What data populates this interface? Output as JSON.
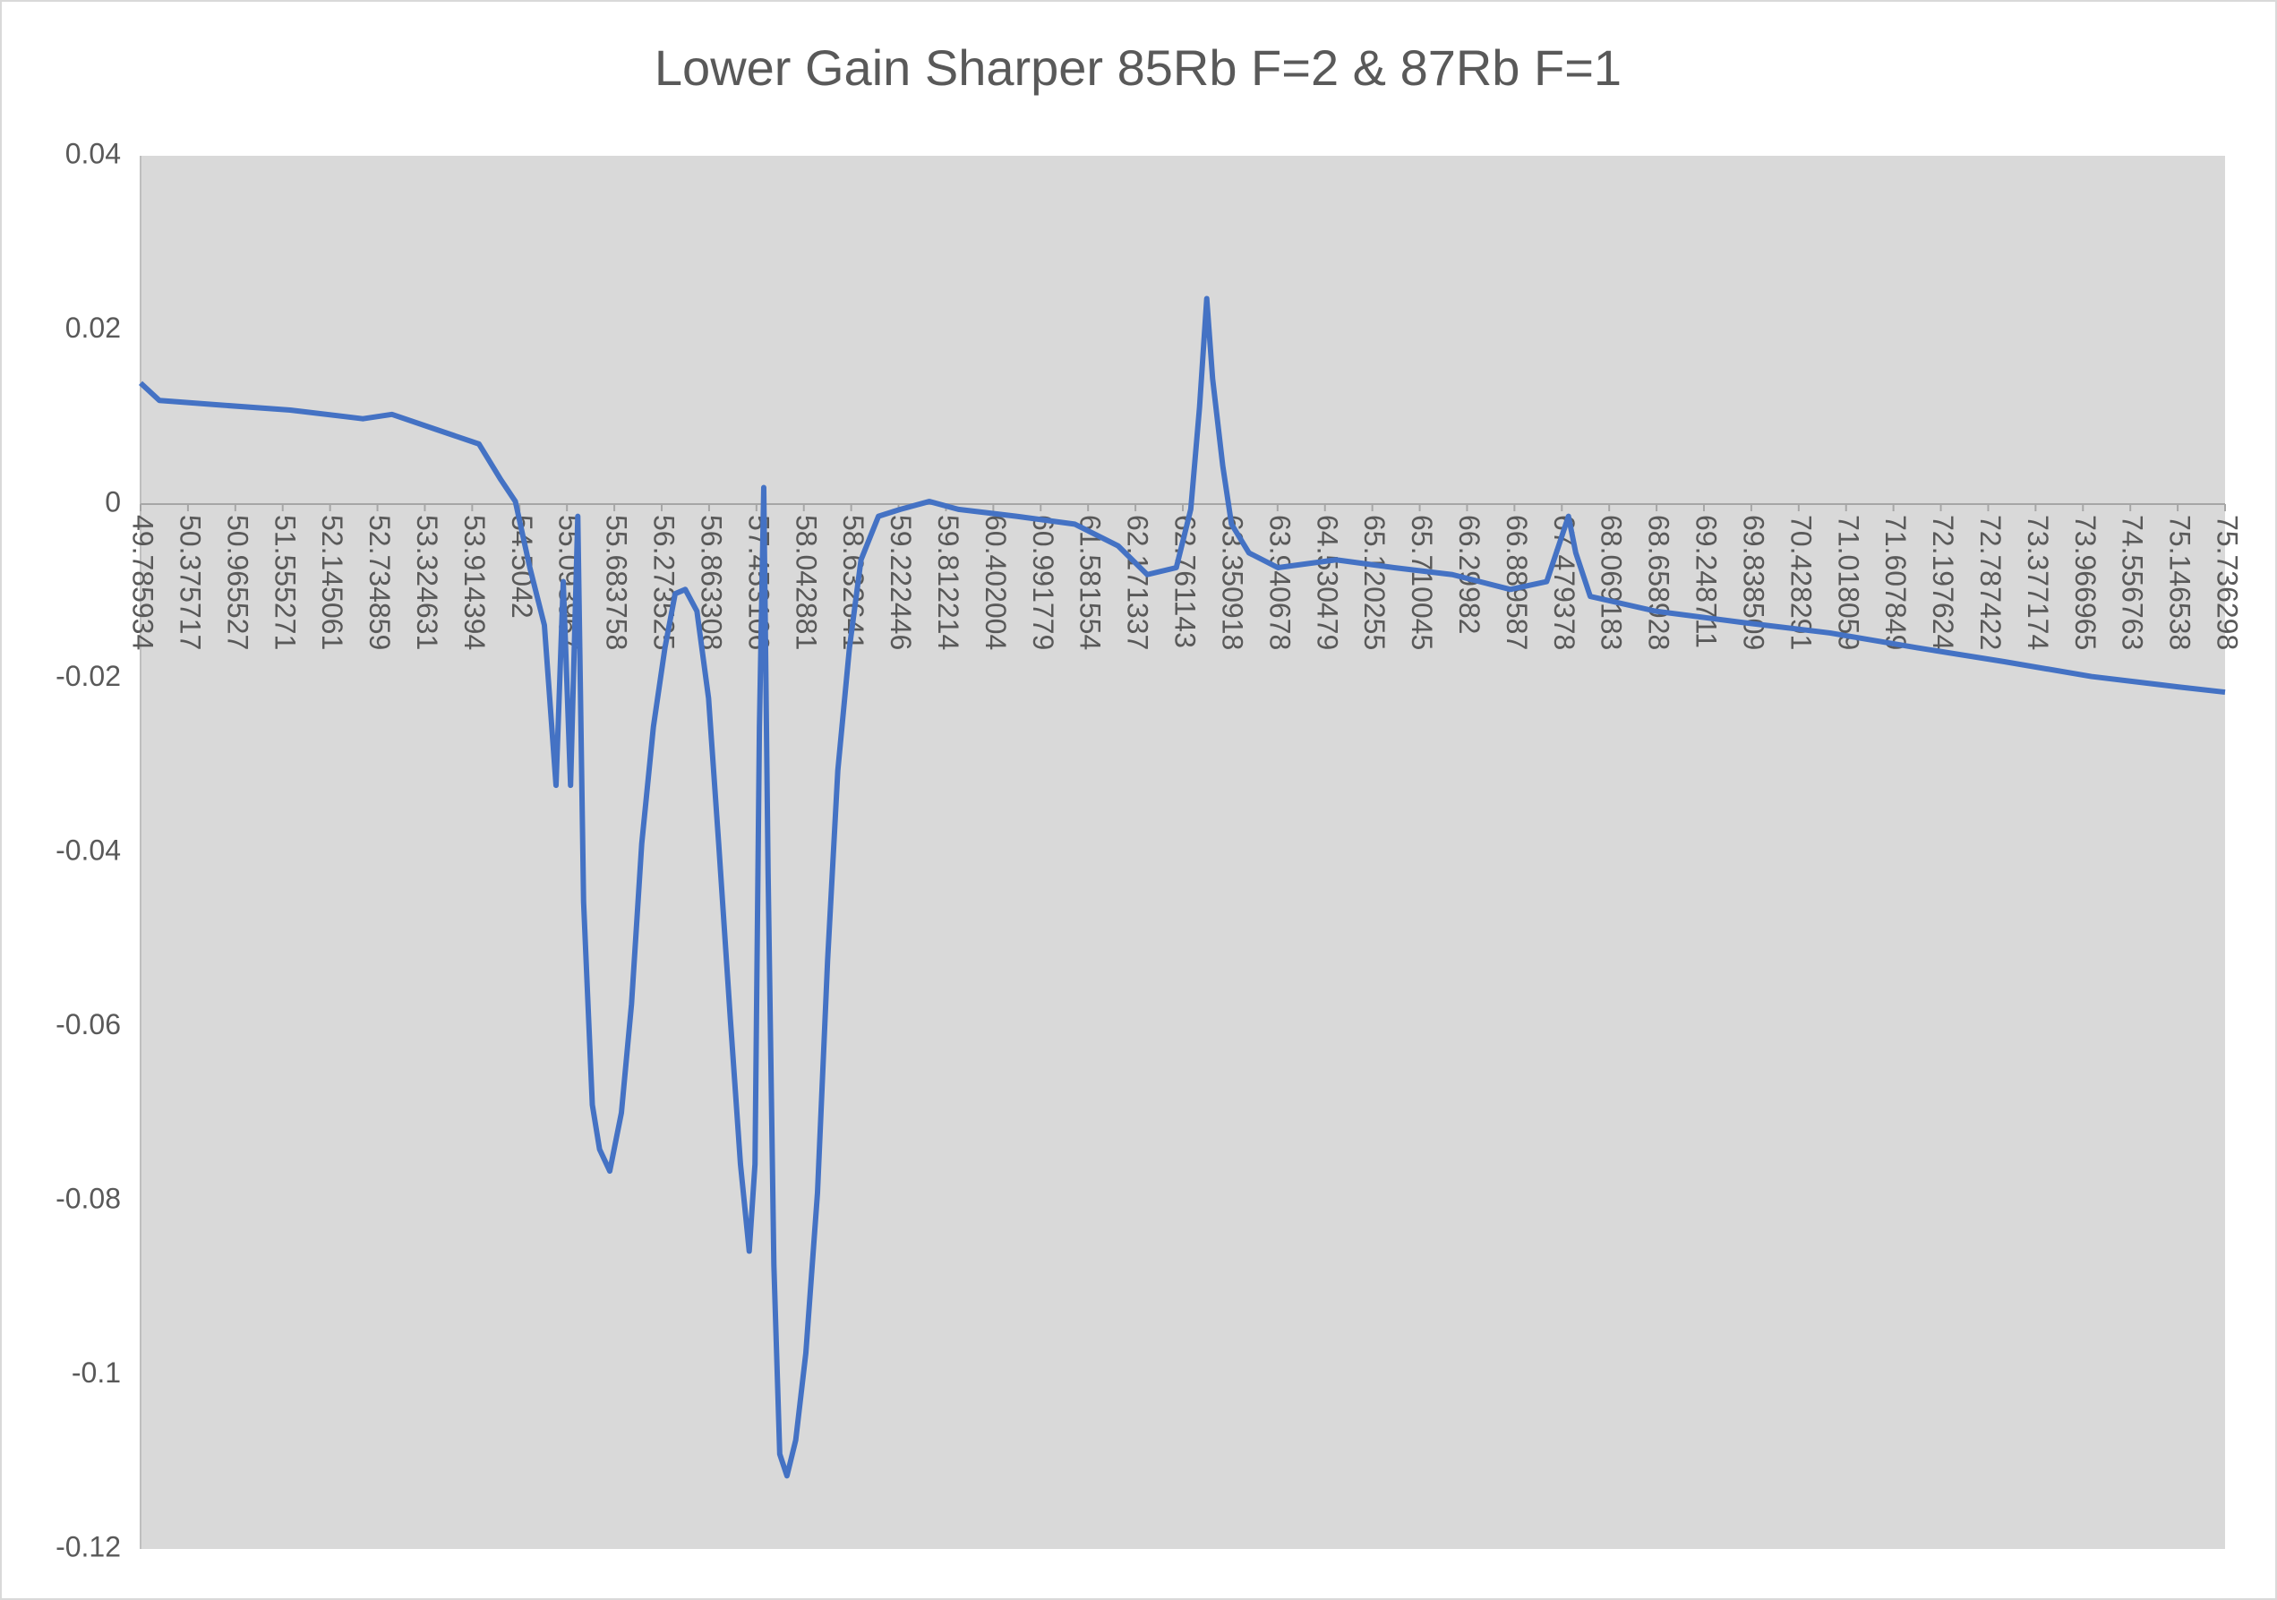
{
  "chart_data": {
    "type": "line",
    "title": "Lower Gain Sharper 85Rb F=2 & 87Rb F=1",
    "x": [
      49.786,
      50.021,
      50.744,
      51.649,
      52.553,
      52.915,
      53.457,
      53.999,
      54.271,
      54.452,
      54.632,
      54.813,
      54.958,
      55.048,
      55.139,
      55.229,
      55.301,
      55.41,
      55.5,
      55.627,
      55.772,
      55.898,
      56.025,
      56.17,
      56.314,
      56.441,
      56.567,
      56.712,
      56.857,
      56.983,
      57.128,
      57.254,
      57.363,
      57.435,
      57.49,
      57.544,
      57.598,
      57.67,
      57.743,
      57.833,
      57.942,
      58.068,
      58.213,
      58.339,
      58.466,
      58.611,
      58.755,
      58.972,
      59.244,
      59.605,
      59.967,
      60.69,
      61.414,
      61.956,
      62.318,
      62.68,
      62.86,
      62.969,
      63.059,
      63.132,
      63.258,
      63.367,
      63.584,
      63.946,
      64.669,
      65.392,
      66.116,
      66.839,
      67.291,
      67.472,
      67.562,
      67.653,
      67.833,
      68.647,
      69.732,
      70.817,
      71.902,
      72.988,
      74.073,
      75.158,
      75.736
    ],
    "series": [
      {
        "color": "#4472c4",
        "values": [
          0.0139,
          0.0119,
          0.0114,
          0.0108,
          0.0098,
          0.0103,
          0.0086,
          0.0069,
          0.0028,
          0.0003,
          -0.0073,
          -0.0139,
          -0.0323,
          -0.0089,
          -0.0323,
          -0.0014,
          -0.0457,
          -0.069,
          -0.0741,
          -0.0766,
          -0.0699,
          -0.0574,
          -0.039,
          -0.0256,
          -0.0165,
          -0.0103,
          -0.0098,
          -0.0123,
          -0.0223,
          -0.039,
          -0.0591,
          -0.0758,
          -0.0858,
          -0.0758,
          -0.0256,
          0.0019,
          -0.0423,
          -0.0874,
          -0.1091,
          -0.1116,
          -0.1075,
          -0.0975,
          -0.0791,
          -0.0524,
          -0.0306,
          -0.0165,
          -0.0064,
          -0.0014,
          -0.0006,
          0.0003,
          -0.0006,
          -0.0014,
          -0.0023,
          -0.0048,
          -0.0081,
          -0.0073,
          -0.0006,
          0.0111,
          0.0236,
          0.0144,
          0.0044,
          -0.0023,
          -0.0056,
          -0.0073,
          -0.0064,
          -0.0073,
          -0.0081,
          -0.0098,
          -0.0089,
          -0.0039,
          -0.0014,
          -0.0056,
          -0.0106,
          -0.0123,
          -0.0136,
          -0.0148,
          -0.0165,
          -0.0181,
          -0.0198,
          -0.021,
          -0.0216
        ]
      }
    ],
    "xlim": [
      49.785934,
      75.736298
    ],
    "xticks": [
      49.785934,
      50.375717,
      50.965527,
      51.555271,
      52.145061,
      52.734859,
      53.324631,
      53.914394,
      54.5042,
      55.093967,
      55.683758,
      56.273525,
      56.863308,
      57.453106,
      58.042881,
      58.632641,
      59.222446,
      59.812214,
      60.402004,
      60.991779,
      61.581554,
      62.171337,
      62.761143,
      63.350918,
      63.940678,
      64.530479,
      65.120255,
      65.710045,
      66.29982,
      66.889587,
      67.479378,
      68.069183,
      68.658928,
      69.248711,
      69.838509,
      70.428291,
      71.018059,
      71.607849,
      72.197624,
      72.787422,
      73.377174,
      73.966965,
      74.556763,
      75.146538,
      75.736298
    ],
    "ylim": [
      -0.12,
      0.04
    ],
    "yticks": [
      0.04,
      0.02,
      0,
      -0.02,
      -0.04,
      -0.06,
      -0.08,
      -0.1,
      -0.12
    ],
    "grid": false
  }
}
